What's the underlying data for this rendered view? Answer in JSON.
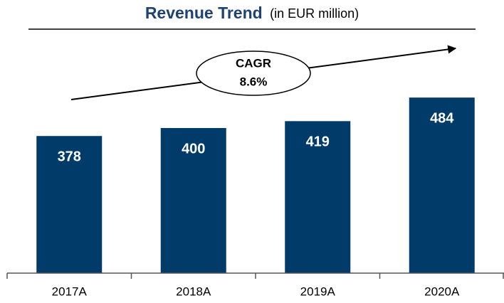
{
  "chart_data": {
    "type": "bar",
    "title": "Revenue Trend",
    "subtitle": "(in EUR million)",
    "annotation": [
      "CAGR",
      "8.6%"
    ],
    "categories": [
      "2017A",
      "2018A",
      "2019A",
      "2020A"
    ],
    "values": [
      378,
      400,
      419,
      484
    ],
    "color": "#003b6a",
    "ylim": [
      0,
      600
    ]
  }
}
